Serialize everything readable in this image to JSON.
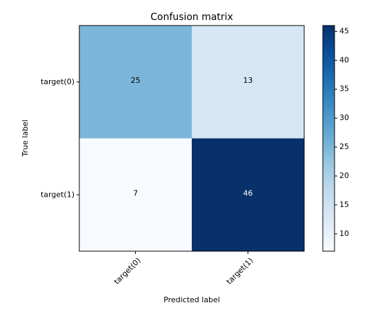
{
  "chart_data": {
    "type": "heatmap",
    "title": "Confusion matrix",
    "xlabel": "Predicted label",
    "ylabel": "True label",
    "x_categories": [
      "target(0)",
      "target(1)"
    ],
    "y_categories": [
      "target(0)",
      "target(1)"
    ],
    "matrix": [
      [
        25,
        13
      ],
      [
        7,
        46
      ]
    ],
    "colormap": "Blues",
    "colorbar": {
      "range": [
        7,
        46
      ],
      "ticks": [
        10,
        15,
        20,
        25,
        30,
        35,
        40,
        45
      ]
    },
    "grid": false
  },
  "colors": {
    "cell_25": "#7bb6da",
    "cell_13": "#d6e6f4",
    "cell_7": "#f7fbff",
    "cell_46": "#08306b",
    "colorbar_stops": [
      "#f7fbff",
      "#deebf7",
      "#c6dbef",
      "#9ecae1",
      "#6baed6",
      "#4292c6",
      "#2171b5",
      "#08519c",
      "#08306b"
    ]
  }
}
